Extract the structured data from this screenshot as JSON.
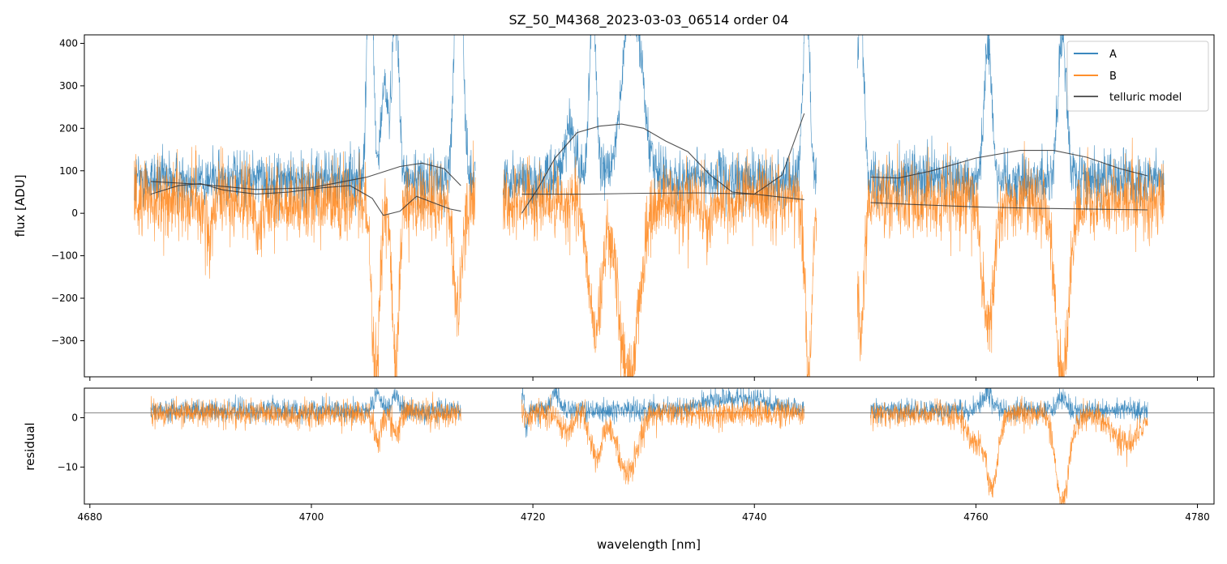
{
  "chart_data": [
    {
      "type": "line",
      "title": "SZ_50_M4368_2023-03-03_06514  order 04",
      "xlabel": "",
      "ylabel": "flux [ADU]",
      "xlim": [
        4679.5,
        4781.5
      ],
      "ylim": [
        -385,
        420
      ],
      "yticks": [
        -300,
        -200,
        -100,
        0,
        100,
        200,
        300,
        400
      ],
      "ytick_labels": [
        "−300",
        "−200",
        "−100",
        "0",
        "100",
        "200",
        "300",
        "400"
      ],
      "xticks": [
        4680,
        4700,
        4720,
        4740,
        4760,
        4780
      ],
      "legend": {
        "placement": "top-right",
        "entries": [
          {
            "label": "A",
            "color": "#1f77b4"
          },
          {
            "label": "B",
            "color": "#ff7f0e"
          },
          {
            "label": "telluric model",
            "color": "#444444"
          }
        ]
      },
      "segments": [
        {
          "start": 4684.0,
          "end": 4714.8
        },
        {
          "start": 4717.3,
          "end": 4745.6
        },
        {
          "start": 4749.3,
          "end": 4777.0
        }
      ],
      "series": [
        {
          "name": "A",
          "color": "#1f77b4",
          "baseline": 80,
          "noise": 32,
          "features": [
            {
              "center": 4705.3,
              "width": 0.25,
              "depth": 650
            },
            {
              "center": 4706.6,
              "width": 0.3,
              "depth": 220
            },
            {
              "center": 4707.6,
              "width": 0.3,
              "depth": 420
            },
            {
              "center": 4713.3,
              "width": 0.35,
              "depth": 650
            },
            {
              "center": 4723.3,
              "width": 0.5,
              "depth": 120
            },
            {
              "center": 4725.4,
              "width": 0.3,
              "depth": 420
            },
            {
              "center": 4729.0,
              "width": 0.9,
              "depth": 420
            },
            {
              "center": 4744.7,
              "width": 0.3,
              "depth": 420
            },
            {
              "center": 4749.6,
              "width": 0.3,
              "depth": 420
            },
            {
              "center": 4761.1,
              "width": 0.35,
              "depth": 320
            },
            {
              "center": 4767.8,
              "width": 0.4,
              "depth": 320
            }
          ]
        },
        {
          "name": "B",
          "color": "#ff7f0e",
          "baseline": 30,
          "noise": 45,
          "features": [
            {
              "center": 4690.8,
              "width": 0.25,
              "depth": -110
            },
            {
              "center": 4695.3,
              "width": 0.3,
              "depth": -70
            },
            {
              "center": 4705.8,
              "width": 0.35,
              "depth": -420
            },
            {
              "center": 4707.6,
              "width": 0.3,
              "depth": -420
            },
            {
              "center": 4713.2,
              "width": 0.4,
              "depth": -250
            },
            {
              "center": 4725.6,
              "width": 0.6,
              "depth": -300
            },
            {
              "center": 4728.7,
              "width": 0.9,
              "depth": -420
            },
            {
              "center": 4735.8,
              "width": 0.3,
              "depth": -80
            },
            {
              "center": 4744.9,
              "width": 0.3,
              "depth": -420
            },
            {
              "center": 4749.6,
              "width": 0.3,
              "depth": -300
            },
            {
              "center": 4761.1,
              "width": 0.5,
              "depth": -300
            },
            {
              "center": 4767.8,
              "width": 0.6,
              "depth": -420
            }
          ]
        },
        {
          "name": "telluric model",
          "color": "#333333",
          "lines": [
            {
              "x": [
                4685.5,
                4690,
                4695,
                4700,
                4705,
                4708,
                4710,
                4712,
                4713.5
              ],
              "y": [
                75,
                68,
                56,
                60,
                85,
                110,
                118,
                105,
                65
              ]
            },
            {
              "x": [
                4685.5,
                4688,
                4690,
                4692,
                4695,
                4698,
                4701,
                4703.5,
                4705.5,
                4706.5,
                4708,
                4709.5,
                4711,
                4712.5,
                4713.5
              ],
              "y": [
                45,
                65,
                70,
                55,
                45,
                50,
                60,
                65,
                35,
                -5,
                5,
                40,
                25,
                10,
                5
              ]
            },
            {
              "x": [
                4719,
                4720.5,
                4722,
                4724,
                4726,
                4728,
                4730,
                4732,
                4734,
                4736,
                4738,
                4740,
                4742.5,
                4744.5
              ],
              "y": [
                0,
                60,
                130,
                190,
                205,
                210,
                200,
                170,
                145,
                90,
                50,
                45,
                90,
                235
              ]
            },
            {
              "x": [
                4719,
                4725,
                4730,
                4735,
                4740,
                4744.5
              ],
              "y": [
                45,
                45,
                47,
                48,
                45,
                32
              ]
            },
            {
              "x": [
                4750.5,
                4753,
                4756,
                4760,
                4764,
                4767,
                4770,
                4773,
                4775.5
              ],
              "y": [
                85,
                83,
                100,
                130,
                148,
                148,
                132,
                105,
                88
              ]
            },
            {
              "x": [
                4750.5,
                4755,
                4760,
                4765,
                4770,
                4775.5
              ],
              "y": [
                25,
                20,
                15,
                12,
                10,
                8
              ]
            }
          ]
        }
      ]
    },
    {
      "type": "line",
      "title": "",
      "xlabel": "wavelength [nm]",
      "ylabel": "residual",
      "xlim": [
        4679.5,
        4781.5
      ],
      "ylim": [
        -17.5,
        6
      ],
      "yticks": [
        -10,
        0
      ],
      "ytick_labels": [
        "−10",
        "0"
      ],
      "xticks": [
        4680,
        4700,
        4720,
        4740,
        4760,
        4780
      ],
      "xtick_labels": [
        "4680",
        "4700",
        "4720",
        "4740",
        "4760",
        "4780"
      ],
      "hline": 1,
      "segments": [
        {
          "start": 4685.5,
          "end": 4713.5
        },
        {
          "start": 4719.0,
          "end": 4744.5
        },
        {
          "start": 4750.5,
          "end": 4775.5
        }
      ],
      "series": [
        {
          "name": "A",
          "color": "#1f77b4",
          "baseline": 1.5,
          "noise": 1.1,
          "features": [
            {
              "center": 4706.0,
              "width": 0.3,
              "depth": 3.5
            },
            {
              "center": 4707.6,
              "width": 0.3,
              "depth": 3.5
            },
            {
              "center": 4719.3,
              "width": 0.25,
              "depth": 5
            },
            {
              "center": 4719.4,
              "width": 0.12,
              "depth": -9
            },
            {
              "center": 4722.0,
              "width": 0.3,
              "depth": 3.5
            },
            {
              "center": 4738.5,
              "width": 3.0,
              "depth": 2.5
            },
            {
              "center": 4761.0,
              "width": 0.4,
              "depth": 3.5
            },
            {
              "center": 4767.7,
              "width": 0.4,
              "depth": 2.5
            }
          ]
        },
        {
          "name": "B",
          "color": "#ff7f0e",
          "baseline": 0.8,
          "noise": 1.4,
          "features": [
            {
              "center": 4706.0,
              "width": 0.3,
              "depth": -5
            },
            {
              "center": 4707.7,
              "width": 0.3,
              "depth": -4
            },
            {
              "center": 4723.0,
              "width": 0.5,
              "depth": -3.5
            },
            {
              "center": 4725.7,
              "width": 0.5,
              "depth": -9
            },
            {
              "center": 4728.5,
              "width": 0.9,
              "depth": -12
            },
            {
              "center": 4760.0,
              "width": 0.8,
              "depth": -6
            },
            {
              "center": 4761.5,
              "width": 0.5,
              "depth": -14
            },
            {
              "center": 4767.8,
              "width": 0.6,
              "depth": -18
            },
            {
              "center": 4773.5,
              "width": 1.2,
              "depth": -6
            }
          ]
        }
      ]
    }
  ]
}
